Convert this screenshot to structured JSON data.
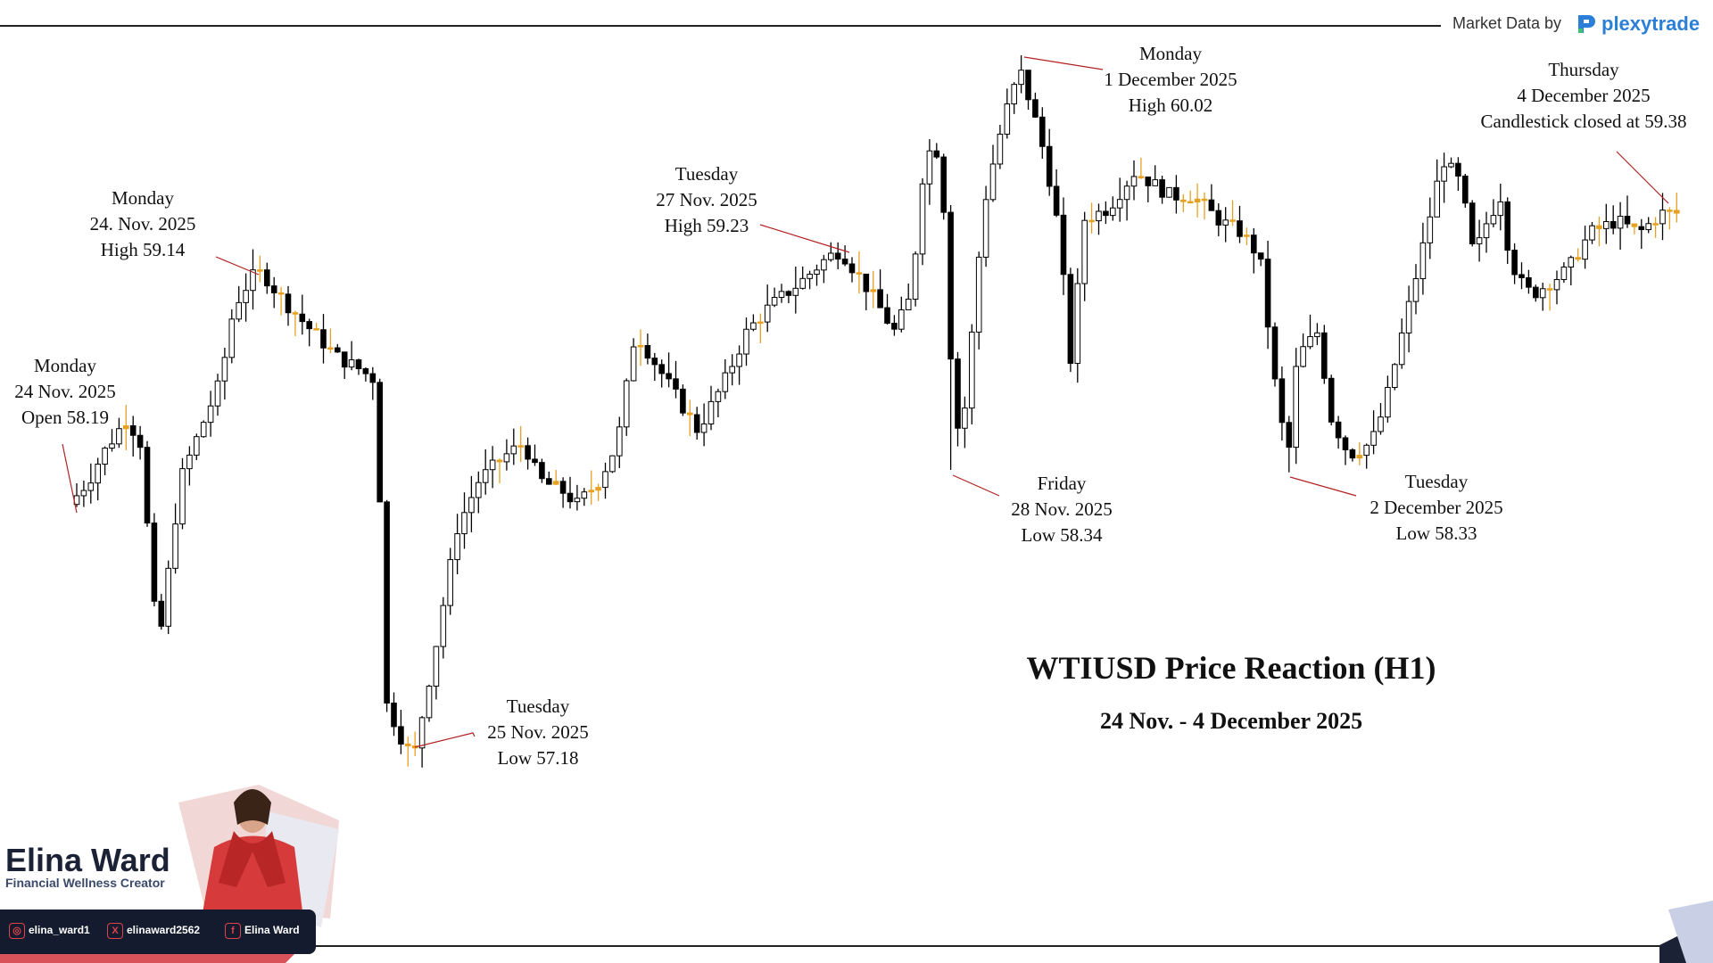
{
  "header": {
    "market_data_label": "Market Data by",
    "brand_name": "plexytrade"
  },
  "chart_data": {
    "type": "candlestick",
    "title": "WTIUSD Price Reaction (H1)",
    "subtitle": "24 Nov. - 4 December 2025",
    "annotations": [
      {
        "id": "open",
        "lines": [
          "Monday",
          "24 Nov. 2025",
          "Open 58.19"
        ],
        "value": 58.19
      },
      {
        "id": "high1",
        "lines": [
          "Monday",
          "24. Nov. 2025",
          "High 59.14"
        ],
        "value": 59.14
      },
      {
        "id": "low1",
        "lines": [
          "Tuesday",
          "25 Nov. 2025",
          "Low 57.18"
        ],
        "value": 57.18
      },
      {
        "id": "high2",
        "lines": [
          "Tuesday",
          "27 Nov. 2025",
          "High 59.23"
        ],
        "value": 59.23
      },
      {
        "id": "high3",
        "lines": [
          "Monday",
          "1 December 2025",
          "High 60.02"
        ],
        "value": 60.02
      },
      {
        "id": "low2",
        "lines": [
          "Friday",
          "28 Nov. 2025",
          "Low 58.34"
        ],
        "value": 58.34
      },
      {
        "id": "low3",
        "lines": [
          "Tuesday",
          "2 December 2025",
          "Low 58.33"
        ],
        "value": 58.33
      },
      {
        "id": "close",
        "lines": [
          "Thursday",
          "4 December 2025",
          "Candlestick closed at 59.38"
        ],
        "value": 59.38
      }
    ],
    "colors": {
      "bull": "#ffffff",
      "bear": "#000000",
      "doji": "#e8a020",
      "wick": "#000000",
      "pointer": "#b22222"
    }
  },
  "branding": {
    "name": "Elina Ward",
    "tagline": "Financial Wellness Creator",
    "socials": [
      {
        "icon": "instagram-icon",
        "glyph": "◎",
        "handle": "elina_ward1"
      },
      {
        "icon": "x-icon",
        "glyph": "X",
        "handle": "elinaward2562"
      },
      {
        "icon": "facebook-icon",
        "glyph": "f",
        "handle": "Elina Ward"
      }
    ]
  }
}
